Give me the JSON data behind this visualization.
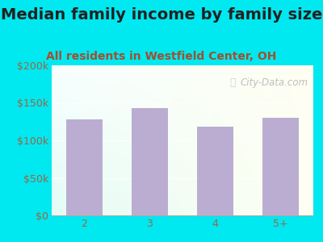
{
  "title": "Median family income by family size",
  "subtitle": "All residents in Westfield Center, OH",
  "categories": [
    "2",
    "3",
    "4",
    "5+"
  ],
  "values": [
    128000,
    143000,
    118000,
    130000
  ],
  "bar_color": "#bbadd1",
  "title_color": "#222222",
  "subtitle_color": "#a05030",
  "axis_label_color": "#996644",
  "background_outer": "#00e8f0",
  "ylim": [
    0,
    200000
  ],
  "yticks": [
    0,
    50000,
    100000,
    150000,
    200000
  ],
  "ytick_labels": [
    "$0",
    "$50k",
    "$100k",
    "$150k",
    "$200k"
  ],
  "watermark": "City-Data.com",
  "title_fontsize": 14,
  "subtitle_fontsize": 10,
  "tick_fontsize": 9
}
